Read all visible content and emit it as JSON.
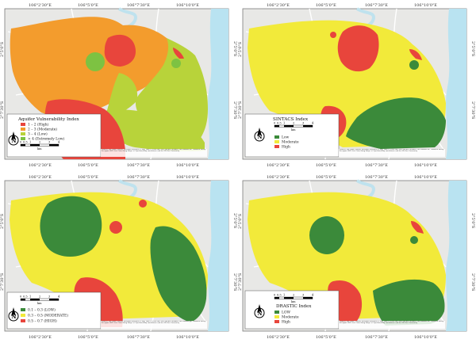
{
  "colors": {
    "water": "#b9e3f1",
    "basemap": "#e8e8e6",
    "road": "#ffffff",
    "river": "#bfe2ee",
    "red": "#e8453c",
    "orange": "#f39c2d",
    "yellow": "#f2ea3a",
    "yellow_green": "#b8d33a",
    "light_green": "#7dc242",
    "green": "#3b8a3a"
  },
  "grid_labels": {
    "lon": [
      "106°2'30\"E",
      "106°5'0\"E",
      "106°7'30\"E",
      "106°10'0\"E"
    ],
    "lat": [
      "2°5'0\"S",
      "2°7'30\"S"
    ],
    "north_letter": "N",
    "scale_ticks": [
      "0",
      "0.5",
      "1",
      "2",
      "3",
      "4"
    ],
    "scale_unit": "km",
    "credit": "Sources: Esri, HERE, Garmin, Intermap, increment P Corp., GEBCO, USGS, FAO, NPS, NRCAN, GeoBase, IGN, Kadaster NL, Ordnance Survey, Esri Japan, METI, Esri China (Hong Kong), (c) OpenStreetMap contributors, and the GIS User Community"
  },
  "maps": [
    {
      "legend_title": "Aquifer Vulnerability Index",
      "classes": [
        {
          "label": "1 – 2 (High)",
          "color": "#e8453c"
        },
        {
          "label": "2 – 3 (Moderate)",
          "color": "#f39c2d"
        },
        {
          "label": "3 – 4 (Low)",
          "color": "#b8d33a"
        },
        {
          "label": "> 4 (Extremely Low)",
          "color": "#7dc242"
        }
      ]
    },
    {
      "legend_title": "SINTACS Index",
      "classes": [
        {
          "label": "Low",
          "color": "#3b8a3a"
        },
        {
          "label": "Moderate",
          "color": "#f2ea3a"
        },
        {
          "label": "High",
          "color": "#e8453c"
        }
      ]
    },
    {
      "legend_title": "",
      "classes": [
        {
          "label": "0.1 – 0.3 (LOW)",
          "color": "#3b8a3a"
        },
        {
          "label": "0.3 – 0.5 (MODERATE)",
          "color": "#f2ea3a"
        },
        {
          "label": "0.5 – 0.7 (HIGH)",
          "color": "#e8453c"
        }
      ]
    },
    {
      "legend_title": "DRASTIC Index",
      "classes": [
        {
          "label": "LOW",
          "color": "#3b8a3a"
        },
        {
          "label": "Moderate",
          "color": "#f2ea3a"
        },
        {
          "label": "High",
          "color": "#e8453c"
        }
      ]
    }
  ]
}
